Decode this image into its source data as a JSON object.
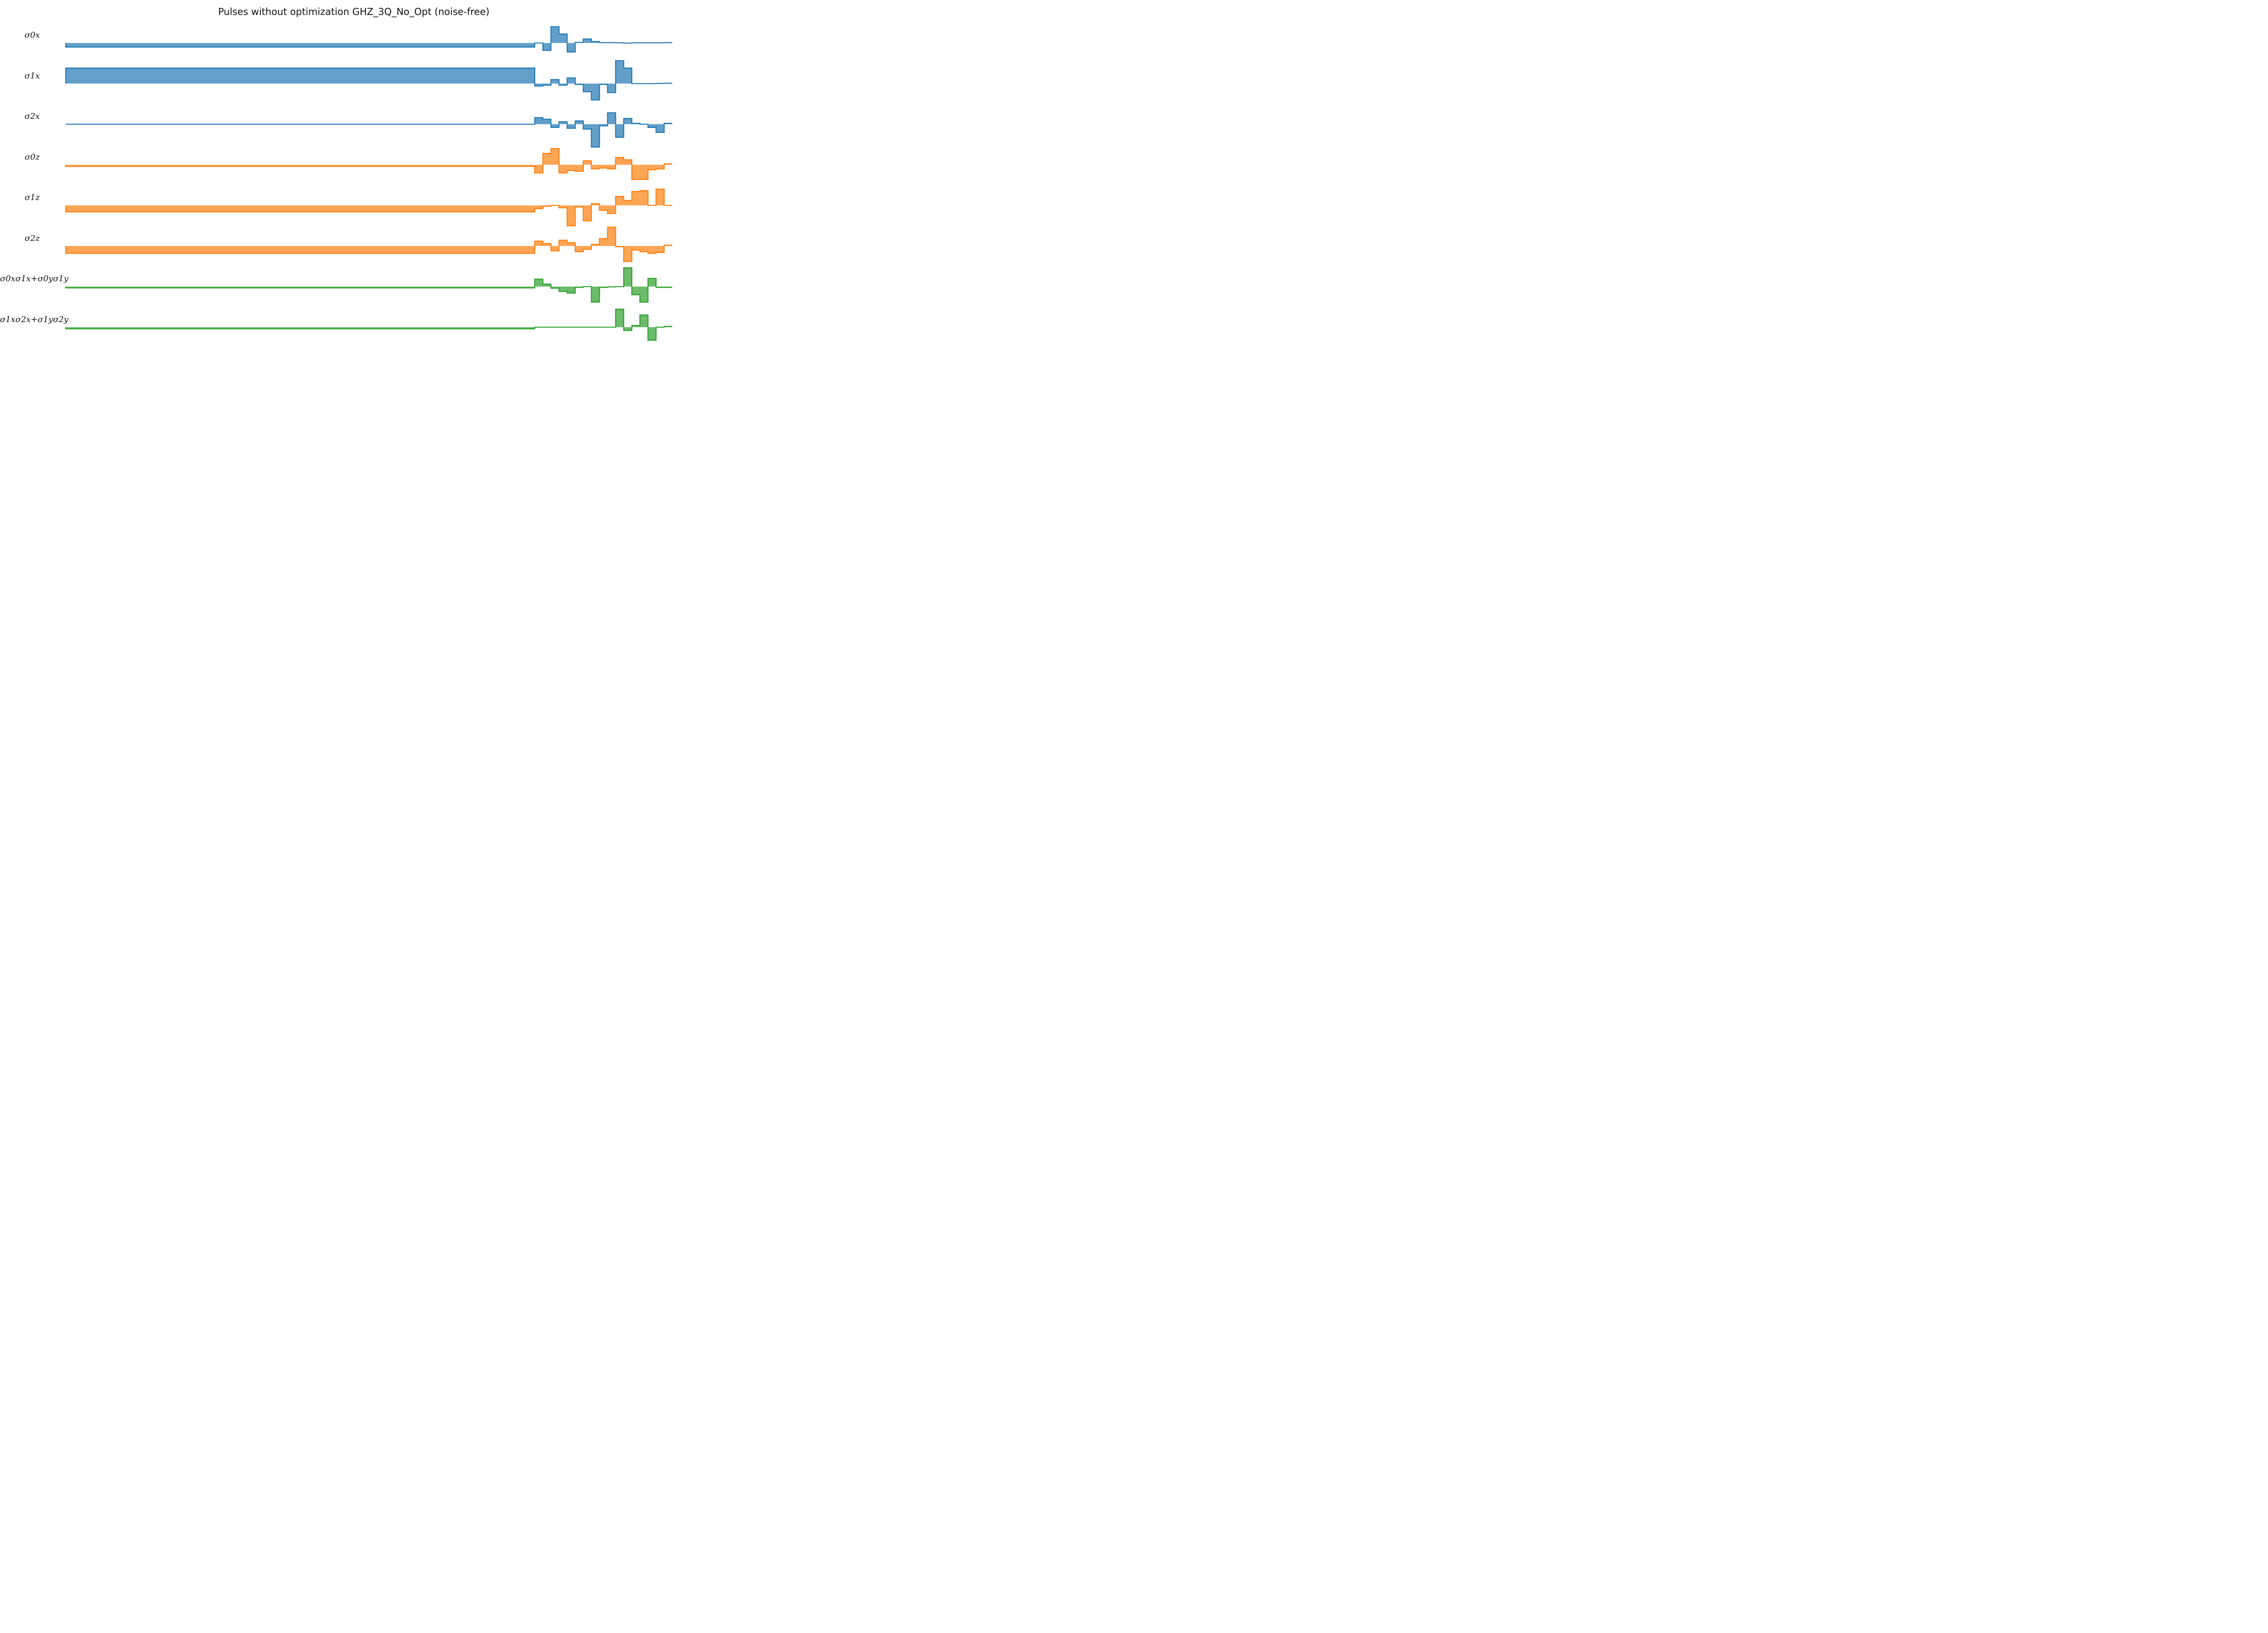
{
  "title": "Pulses without optimization GHZ_3Q_No_Opt (noise-free)",
  "chart_data": {
    "type": "area",
    "title": "Pulses without optimization GHZ_3Q_No_Opt (noise-free)",
    "xlabel": "",
    "ylabel": "",
    "x_axis_visible": false,
    "y_axis_visible": false,
    "steps": 75,
    "colors": {
      "x": "#1f77b4",
      "z": "#ff7f0e",
      "xy": "#2ca02c"
    },
    "series": [
      {
        "name": "σ_x^0",
        "label_parts": [
          {
            "base": "σ",
            "sup": "0",
            "sub": "x"
          }
        ],
        "color": "#1f77b4",
        "values": [
          -0.25,
          -0.25,
          -0.25,
          -0.25,
          -0.25,
          -0.25,
          -0.25,
          -0.25,
          -0.25,
          -0.25,
          -0.25,
          -0.25,
          -0.25,
          -0.25,
          -0.25,
          -0.25,
          -0.25,
          -0.25,
          -0.25,
          -0.25,
          -0.25,
          -0.25,
          -0.25,
          -0.25,
          -0.25,
          -0.25,
          -0.25,
          -0.25,
          -0.25,
          -0.25,
          -0.25,
          -0.25,
          -0.25,
          -0.25,
          -0.25,
          -0.25,
          -0.25,
          -0.25,
          -0.25,
          -0.25,
          -0.25,
          -0.25,
          -0.25,
          -0.25,
          -0.25,
          -0.25,
          -0.25,
          -0.25,
          -0.25,
          -0.25,
          -0.25,
          -0.25,
          -0.25,
          -0.25,
          -0.25,
          -0.25,
          -0.25,
          -0.25,
          0.0,
          -0.45,
          1.0,
          0.55,
          -0.55,
          0.04,
          0.25,
          0.09,
          0.02,
          0.02,
          0.01,
          -0.01,
          0.01,
          0.01,
          0.01,
          0.01,
          0.02
        ]
      },
      {
        "name": "σ_x^1",
        "label_parts": [
          {
            "base": "σ",
            "sup": "1",
            "sub": "x"
          }
        ],
        "color": "#1f77b4",
        "values": [
          0.95,
          0.95,
          0.95,
          0.95,
          0.95,
          0.95,
          0.95,
          0.95,
          0.95,
          0.95,
          0.95,
          0.95,
          0.95,
          0.95,
          0.95,
          0.95,
          0.95,
          0.95,
          0.95,
          0.95,
          0.95,
          0.95,
          0.95,
          0.95,
          0.95,
          0.95,
          0.95,
          0.95,
          0.95,
          0.95,
          0.95,
          0.95,
          0.95,
          0.95,
          0.95,
          0.95,
          0.95,
          0.95,
          0.95,
          0.95,
          0.95,
          0.95,
          0.95,
          0.95,
          0.95,
          0.95,
          0.95,
          0.95,
          0.95,
          0.95,
          0.95,
          0.95,
          0.95,
          0.95,
          0.95,
          0.95,
          0.95,
          0.95,
          -0.15,
          -0.1,
          0.25,
          -0.1,
          0.35,
          -0.05,
          -0.5,
          -1.0,
          -0.05,
          -0.55,
          1.4,
          0.95,
          0.0,
          0.0,
          0.0,
          0.01,
          0.02
        ]
      },
      {
        "name": "σ_x^2",
        "label_parts": [
          {
            "base": "σ",
            "sup": "2",
            "sub": "x"
          }
        ],
        "color": "#1f77b4",
        "values": [
          0.0,
          0.0,
          0.0,
          0.0,
          0.0,
          0.0,
          0.0,
          0.0,
          0.0,
          0.0,
          0.0,
          0.0,
          0.0,
          0.0,
          0.0,
          0.0,
          0.0,
          0.0,
          0.0,
          0.0,
          0.0,
          0.0,
          0.0,
          0.0,
          0.0,
          0.0,
          0.0,
          0.0,
          0.0,
          0.0,
          0.0,
          0.0,
          0.0,
          0.0,
          0.0,
          0.0,
          0.0,
          0.0,
          0.0,
          0.0,
          0.0,
          0.0,
          0.0,
          0.0,
          0.0,
          0.0,
          0.0,
          0.0,
          0.0,
          0.0,
          0.0,
          0.0,
          0.0,
          0.0,
          0.0,
          0.0,
          0.0,
          0.0,
          0.4,
          0.3,
          -0.2,
          0.15,
          -0.25,
          0.2,
          -0.3,
          -1.4,
          -0.1,
          0.7,
          -0.8,
          0.35,
          0.05,
          0.0,
          -0.2,
          -0.5,
          0.05
        ]
      },
      {
        "name": "σ_z^0",
        "label_parts": [
          {
            "base": "σ",
            "sup": "0",
            "sub": "z"
          }
        ],
        "color": "#ff7f0e",
        "values": [
          -0.1,
          -0.1,
          -0.1,
          -0.1,
          -0.1,
          -0.1,
          -0.1,
          -0.1,
          -0.1,
          -0.1,
          -0.1,
          -0.1,
          -0.1,
          -0.1,
          -0.1,
          -0.1,
          -0.1,
          -0.1,
          -0.1,
          -0.1,
          -0.1,
          -0.1,
          -0.1,
          -0.1,
          -0.1,
          -0.1,
          -0.1,
          -0.1,
          -0.1,
          -0.1,
          -0.1,
          -0.1,
          -0.1,
          -0.1,
          -0.1,
          -0.1,
          -0.1,
          -0.1,
          -0.1,
          -0.1,
          -0.1,
          -0.1,
          -0.1,
          -0.1,
          -0.1,
          -0.1,
          -0.1,
          -0.1,
          -0.1,
          -0.1,
          -0.1,
          -0.1,
          -0.1,
          -0.1,
          -0.1,
          -0.1,
          -0.1,
          -0.1,
          -0.5,
          0.7,
          1.0,
          -0.5,
          -0.35,
          -0.4,
          0.25,
          -0.25,
          -0.2,
          -0.25,
          0.45,
          0.3,
          -0.9,
          -0.9,
          -0.3,
          -0.25,
          0.05
        ]
      },
      {
        "name": "σ_z^1",
        "label_parts": [
          {
            "base": "σ",
            "sup": "1",
            "sub": "z"
          }
        ],
        "color": "#ff7f0e",
        "values": [
          -0.4,
          -0.4,
          -0.4,
          -0.4,
          -0.4,
          -0.4,
          -0.4,
          -0.4,
          -0.4,
          -0.4,
          -0.4,
          -0.4,
          -0.4,
          -0.4,
          -0.4,
          -0.4,
          -0.4,
          -0.4,
          -0.4,
          -0.4,
          -0.4,
          -0.4,
          -0.4,
          -0.4,
          -0.4,
          -0.4,
          -0.4,
          -0.4,
          -0.4,
          -0.4,
          -0.4,
          -0.4,
          -0.4,
          -0.4,
          -0.4,
          -0.4,
          -0.4,
          -0.4,
          -0.4,
          -0.4,
          -0.4,
          -0.4,
          -0.4,
          -0.4,
          -0.4,
          -0.4,
          -0.4,
          -0.4,
          -0.4,
          -0.4,
          -0.4,
          -0.4,
          -0.4,
          -0.4,
          -0.4,
          -0.4,
          -0.4,
          -0.4,
          -0.2,
          -0.05,
          0.0,
          -0.15,
          -1.25,
          -0.1,
          -0.95,
          0.1,
          -0.3,
          -0.5,
          0.55,
          0.3,
          0.85,
          0.9,
          0.0,
          1.0,
          0.0
        ]
      },
      {
        "name": "σ_z^2",
        "label_parts": [
          {
            "base": "σ",
            "sup": "2",
            "sub": "z"
          }
        ],
        "color": "#ff7f0e",
        "values": [
          -0.45,
          -0.45,
          -0.45,
          -0.45,
          -0.45,
          -0.45,
          -0.45,
          -0.45,
          -0.45,
          -0.45,
          -0.45,
          -0.45,
          -0.45,
          -0.45,
          -0.45,
          -0.45,
          -0.45,
          -0.45,
          -0.45,
          -0.45,
          -0.45,
          -0.45,
          -0.45,
          -0.45,
          -0.45,
          -0.45,
          -0.45,
          -0.45,
          -0.45,
          -0.45,
          -0.45,
          -0.45,
          -0.45,
          -0.45,
          -0.45,
          -0.45,
          -0.45,
          -0.45,
          -0.45,
          -0.45,
          -0.45,
          -0.45,
          -0.45,
          -0.45,
          -0.45,
          -0.45,
          -0.45,
          -0.45,
          -0.45,
          -0.45,
          -0.45,
          -0.45,
          -0.45,
          -0.45,
          -0.45,
          -0.45,
          -0.45,
          -0.45,
          0.3,
          0.15,
          -0.3,
          0.35,
          0.2,
          -0.35,
          -0.2,
          0.1,
          0.45,
          1.15,
          -0.05,
          -0.95,
          -0.25,
          -0.35,
          -0.45,
          -0.4,
          0.05
        ]
      },
      {
        "name": "σ_x^0σ_x^1 + σ_y^0σ_y^1",
        "label_parts": [
          {
            "base": "σ",
            "sup": "0",
            "sub": "x"
          },
          {
            "base": "σ",
            "sup": "1",
            "sub": "x"
          },
          {
            "op": "+"
          },
          {
            "base": "σ",
            "sup": "0",
            "sub": "y"
          },
          {
            "base": "σ",
            "sup": "1",
            "sub": "y"
          }
        ],
        "color": "#2ca02c",
        "values": [
          -0.08,
          -0.08,
          -0.08,
          -0.08,
          -0.08,
          -0.08,
          -0.08,
          -0.08,
          -0.08,
          -0.08,
          -0.08,
          -0.08,
          -0.08,
          -0.08,
          -0.08,
          -0.08,
          -0.08,
          -0.08,
          -0.08,
          -0.08,
          -0.08,
          -0.08,
          -0.08,
          -0.08,
          -0.08,
          -0.08,
          -0.08,
          -0.08,
          -0.08,
          -0.08,
          -0.08,
          -0.08,
          -0.08,
          -0.08,
          -0.08,
          -0.08,
          -0.08,
          -0.08,
          -0.08,
          -0.08,
          -0.08,
          -0.08,
          -0.08,
          -0.08,
          -0.08,
          -0.08,
          -0.08,
          -0.08,
          -0.08,
          -0.08,
          -0.08,
          -0.08,
          -0.08,
          -0.08,
          -0.08,
          -0.08,
          -0.08,
          -0.08,
          0.45,
          0.15,
          -0.1,
          -0.3,
          -0.4,
          -0.05,
          0.0,
          -0.95,
          -0.05,
          -0.02,
          0.0,
          1.15,
          -0.5,
          -0.95,
          0.5,
          -0.05,
          -0.05
        ]
      },
      {
        "name": "σ_x^1σ_x^2 + σ_y^1σ_y^2",
        "label_parts": [
          {
            "base": "σ",
            "sup": "1",
            "sub": "x"
          },
          {
            "base": "σ",
            "sup": "2",
            "sub": "x"
          },
          {
            "op": "+"
          },
          {
            "base": "σ",
            "sup": "1",
            "sub": "y"
          },
          {
            "base": "σ",
            "sup": "2",
            "sub": "y"
          }
        ],
        "color": "#2ca02c",
        "values": [
          -0.1,
          -0.1,
          -0.1,
          -0.1,
          -0.1,
          -0.1,
          -0.1,
          -0.1,
          -0.1,
          -0.1,
          -0.1,
          -0.1,
          -0.1,
          -0.1,
          -0.1,
          -0.1,
          -0.1,
          -0.1,
          -0.1,
          -0.1,
          -0.1,
          -0.1,
          -0.1,
          -0.1,
          -0.1,
          -0.1,
          -0.1,
          -0.1,
          -0.1,
          -0.1,
          -0.1,
          -0.1,
          -0.1,
          -0.1,
          -0.1,
          -0.1,
          -0.1,
          -0.1,
          -0.1,
          -0.1,
          -0.1,
          -0.1,
          -0.1,
          -0.1,
          -0.1,
          -0.1,
          -0.1,
          -0.1,
          -0.1,
          -0.1,
          -0.1,
          -0.1,
          -0.1,
          -0.1,
          -0.1,
          -0.1,
          -0.1,
          -0.1,
          0.0,
          0.0,
          0.0,
          0.0,
          0.0,
          0.0,
          0.0,
          0.0,
          0.0,
          0.0,
          1.1,
          -0.2,
          0.1,
          0.75,
          -0.8,
          0.0,
          0.05
        ]
      }
    ]
  }
}
